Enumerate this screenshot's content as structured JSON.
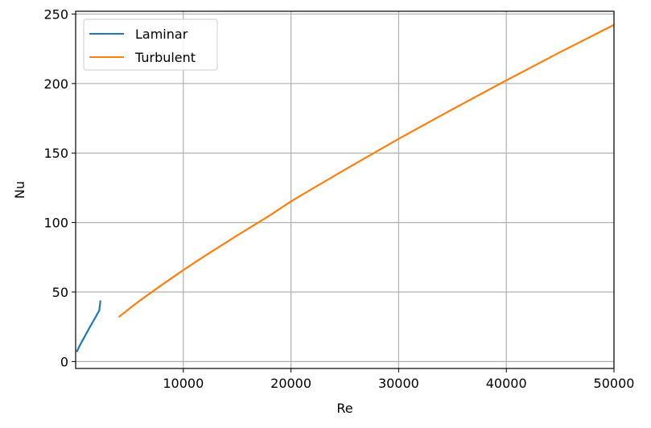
{
  "chart_data": {
    "type": "line",
    "title": "",
    "xlabel": "Re",
    "ylabel": "Nu",
    "xlim": [
      0,
      50000
    ],
    "ylim": [
      -5,
      252
    ],
    "xticks": [
      10000,
      20000,
      30000,
      40000,
      50000
    ],
    "yticks": [
      0,
      50,
      100,
      150,
      200,
      250
    ],
    "grid": true,
    "legend_position": "top-left",
    "series": [
      {
        "name": "Laminar",
        "color": "#1f77b4",
        "x": [
          100,
          200,
          300,
          500,
          700,
          1000,
          1300,
          1600,
          1900,
          2200,
          2300
        ],
        "y": [
          6.9,
          8.6,
          10.2,
          13.2,
          16.0,
          20.3,
          24.5,
          28.6,
          32.7,
          36.8,
          43.9
        ]
      },
      {
        "name": "Turbulent",
        "color": "#ff7f0e",
        "x": [
          4000,
          5000,
          6000,
          7000,
          8000,
          10000,
          12000,
          15000,
          18000,
          20000,
          25000,
          30000,
          35000,
          40000,
          45000,
          50000
        ],
        "y": [
          32,
          38.1,
          44.0,
          49.6,
          55.1,
          65.8,
          76.0,
          90.7,
          104.9,
          115.2,
          138.0,
          160.2,
          181.5,
          202.3,
          222.6,
          242.2
        ]
      }
    ]
  }
}
